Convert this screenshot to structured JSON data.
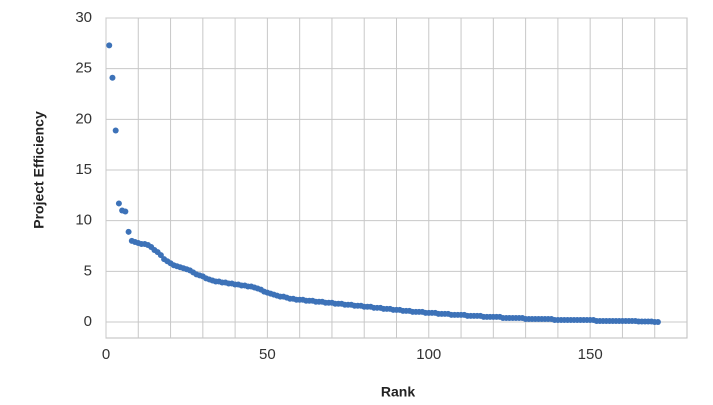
{
  "chart_data": {
    "type": "scatter",
    "x_label": "Rank",
    "y_label": "Project Efficiency",
    "color": "#3d72b8",
    "xlim": [
      0,
      180
    ],
    "xticks": [
      0,
      50,
      100,
      150
    ],
    "x_minor_ticks": [
      10,
      20,
      30,
      40,
      60,
      70,
      80,
      90,
      110,
      120,
      130,
      140,
      160,
      170
    ],
    "ylim": [
      0,
      30
    ],
    "yticks": [
      0,
      5,
      10,
      15,
      20,
      25,
      30
    ],
    "grid": true,
    "x": [
      1,
      2,
      3,
      4,
      5,
      6,
      7,
      8,
      9,
      10,
      11,
      12,
      13,
      14,
      15,
      16,
      17,
      18,
      19,
      20,
      21,
      22,
      23,
      24,
      25,
      26,
      27,
      28,
      29,
      30,
      31,
      32,
      33,
      34,
      35,
      36,
      37,
      38,
      39,
      40,
      41,
      42,
      43,
      44,
      45,
      46,
      47,
      48,
      49,
      50,
      51,
      52,
      53,
      54,
      55,
      56,
      57,
      58,
      59,
      60,
      61,
      62,
      63,
      64,
      65,
      66,
      67,
      68,
      69,
      70,
      71,
      72,
      73,
      74,
      75,
      76,
      77,
      78,
      79,
      80,
      81,
      82,
      83,
      84,
      85,
      86,
      87,
      88,
      89,
      90,
      91,
      92,
      93,
      94,
      95,
      96,
      97,
      98,
      99,
      100,
      101,
      102,
      103,
      104,
      105,
      106,
      107,
      108,
      109,
      110,
      111,
      112,
      113,
      114,
      115,
      116,
      117,
      118,
      119,
      120,
      121,
      122,
      123,
      124,
      125,
      126,
      127,
      128,
      129,
      130,
      131,
      132,
      133,
      134,
      135,
      136,
      137,
      138,
      139,
      140,
      141,
      142,
      143,
      144,
      145,
      146,
      147,
      148,
      149,
      150,
      151,
      152,
      153,
      154,
      155,
      156,
      157,
      158,
      159,
      160,
      161,
      162,
      163,
      164,
      165,
      166,
      167,
      168,
      169,
      170,
      171
    ],
    "values": [
      27.3,
      24.1,
      18.9,
      11.7,
      11.0,
      10.9,
      8.9,
      8.0,
      7.9,
      7.8,
      7.7,
      7.7,
      7.6,
      7.4,
      7.1,
      6.9,
      6.6,
      6.2,
      6.0,
      5.8,
      5.6,
      5.5,
      5.4,
      5.3,
      5.2,
      5.1,
      4.9,
      4.7,
      4.6,
      4.5,
      4.3,
      4.2,
      4.1,
      4.0,
      4.0,
      3.9,
      3.9,
      3.8,
      3.8,
      3.7,
      3.7,
      3.6,
      3.6,
      3.5,
      3.5,
      3.4,
      3.3,
      3.2,
      3.0,
      2.9,
      2.8,
      2.7,
      2.6,
      2.5,
      2.5,
      2.4,
      2.3,
      2.3,
      2.2,
      2.2,
      2.2,
      2.1,
      2.1,
      2.1,
      2.0,
      2.0,
      2.0,
      1.9,
      1.9,
      1.9,
      1.8,
      1.8,
      1.8,
      1.7,
      1.7,
      1.7,
      1.6,
      1.6,
      1.6,
      1.5,
      1.5,
      1.5,
      1.4,
      1.4,
      1.4,
      1.3,
      1.3,
      1.3,
      1.2,
      1.2,
      1.2,
      1.1,
      1.1,
      1.1,
      1.0,
      1.0,
      1.0,
      1.0,
      0.9,
      0.9,
      0.9,
      0.9,
      0.8,
      0.8,
      0.8,
      0.8,
      0.7,
      0.7,
      0.7,
      0.7,
      0.7,
      0.6,
      0.6,
      0.6,
      0.6,
      0.6,
      0.5,
      0.5,
      0.5,
      0.5,
      0.5,
      0.5,
      0.4,
      0.4,
      0.4,
      0.4,
      0.4,
      0.4,
      0.4,
      0.3,
      0.3,
      0.3,
      0.3,
      0.3,
      0.3,
      0.3,
      0.3,
      0.3,
      0.2,
      0.2,
      0.2,
      0.2,
      0.2,
      0.2,
      0.2,
      0.2,
      0.2,
      0.2,
      0.2,
      0.2,
      0.2,
      0.1,
      0.1,
      0.1,
      0.1,
      0.1,
      0.1,
      0.1,
      0.1,
      0.1,
      0.1,
      0.1,
      0.1,
      0.1,
      0.05,
      0.05,
      0.05,
      0.05,
      0.05,
      0.0,
      0.0
    ]
  }
}
